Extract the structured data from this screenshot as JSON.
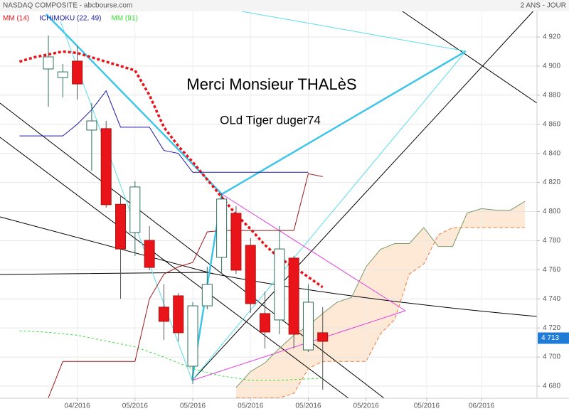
{
  "chart_data": {
    "type": "candlestick",
    "header": "NASDAQ COMPOSITE - abcbourse.com",
    "period": "2 ANS - JOUR",
    "annotations": [
      "Merci Monsieur THALèS",
      "OLd Tiger duger74"
    ],
    "xlim": [
      -3.35,
      33.84
    ],
    "ylim": [
      4671.7,
      4945.4
    ],
    "xticks": [
      {
        "value": 2,
        "label": "04/2016"
      },
      {
        "value": 6,
        "label": "05/2016"
      },
      {
        "value": 10,
        "label": "05/2016"
      },
      {
        "value": 14,
        "label": "05/2016"
      },
      {
        "value": 18,
        "label": "05/2016"
      },
      {
        "value": 22,
        "label": "05/2016"
      },
      {
        "value": 26.2,
        "label": "05/2016"
      },
      {
        "value": 30,
        "label": "06/2016"
      }
    ],
    "yticks": [
      {
        "value": 4680,
        "label": "4 680"
      },
      {
        "value": 4700,
        "label": "4 700"
      },
      {
        "value": 4720,
        "label": "4 720"
      },
      {
        "value": 4740,
        "label": "4 740"
      },
      {
        "value": 4760,
        "label": "4 760"
      },
      {
        "value": 4780,
        "label": "4 780"
      },
      {
        "value": 4800,
        "label": "4 800"
      },
      {
        "value": 4820,
        "label": "4 820"
      },
      {
        "value": 4840,
        "label": "4 840"
      },
      {
        "value": 4860,
        "label": "4 860"
      },
      {
        "value": 4880,
        "label": "4 880"
      },
      {
        "value": 4900,
        "label": "4 900"
      },
      {
        "value": 4920,
        "label": "4 920"
      }
    ],
    "grid": true,
    "candles": {
      "up_color": "#2f6f5e",
      "down_color": "#e8141a",
      "x": [
        0,
        1,
        2,
        3,
        4,
        5,
        6,
        7,
        8,
        9,
        10,
        11,
        12,
        13,
        14,
        15,
        16,
        17,
        18,
        19
      ],
      "open": [
        4898,
        4892.1,
        4903.4,
        4856,
        4857,
        4805,
        4785.6,
        4780.2,
        4734.3,
        4742.1,
        4693.7,
        4735.2,
        4768.5,
        4798.8,
        4776.8,
        4729.9,
        4725.5,
        4768,
        4704.9,
        4716.7
      ],
      "high": [
        4921,
        4901.4,
        4913.6,
        4874.5,
        4862.3,
        4811,
        4820.8,
        4790,
        4750,
        4744,
        4737.7,
        4762.1,
        4812.5,
        4803.7,
        4781.7,
        4745,
        4790,
        4769.5,
        4750,
        4734.3
      ],
      "low": [
        4872,
        4878.5,
        4877,
        4828,
        4802.7,
        4740,
        4769.5,
        4759.7,
        4711.8,
        4710.8,
        4681.5,
        4732.8,
        4757.2,
        4757.2,
        4730.4,
        4705.9,
        4715.7,
        4705.9,
        4703.5,
        4677.6
      ],
      "close": [
        4906.3,
        4896,
        4887.7,
        4862.3,
        4804.7,
        4774.3,
        4816.9,
        4761.6,
        4724.5,
        4716.7,
        4735.2,
        4749.9,
        4808.6,
        4759.7,
        4736.7,
        4717.2,
        4774.3,
        4715.7,
        4737.7,
        4710.8
      ]
    },
    "series": [
      {
        "name": "MM (14)",
        "color": "#e8141a",
        "style": "dotted",
        "width": 3.5,
        "x": [
          -2,
          -1,
          0,
          1,
          2,
          3,
          4,
          5,
          6,
          7,
          8,
          9,
          10,
          11,
          12,
          13,
          14,
          15,
          16,
          17,
          18,
          19
        ],
        "values": [
          4903,
          4906,
          4908,
          4910,
          4909,
          4906,
          4903,
          4900,
          4897,
          4880,
          4858,
          4845,
          4834,
          4822,
          4810,
          4798,
          4788,
          4777,
          4768,
          4762,
          4755,
          4748
        ]
      },
      {
        "name": "ICHIMOKU (22, 49)",
        "color": "#1a1aa8",
        "style": "solid",
        "width": 1,
        "x": [
          -2,
          -1,
          0,
          1,
          2,
          3,
          4,
          5,
          6,
          7,
          8,
          9,
          10,
          11,
          12,
          13,
          14,
          15,
          16,
          17,
          18
        ],
        "values": [
          4852,
          4852,
          4852,
          4852,
          4860,
          4870,
          4883,
          4858,
          4858,
          4858,
          4842,
          4840,
          4827,
          4827,
          4827,
          4827,
          4827,
          4827,
          4827,
          4827,
          4827
        ]
      },
      {
        "name": "MM (91)",
        "color": "#33dd33",
        "style": "dotted",
        "width": 1,
        "x": [
          -2,
          0,
          2,
          4,
          6,
          8,
          10,
          12,
          14,
          16,
          18,
          19
        ],
        "values": [
          4718,
          4717,
          4715,
          4711,
          4707,
          4700,
          4692,
          4687,
          4684,
          4684,
          4685,
          4685.5
        ]
      },
      {
        "color": "#a01818",
        "style": "solid",
        "width": 1,
        "x": [
          0,
          1,
          2,
          3,
          4,
          5,
          6,
          7,
          8,
          9,
          10,
          11,
          12,
          13,
          14,
          15,
          16,
          17,
          18,
          19
        ],
        "values": [
          4672,
          4697,
          4697,
          4697,
          4697,
          4697,
          4697,
          4740,
          4757,
          4762,
          4765,
          4786,
          4787,
          4787,
          4787,
          4787,
          4787,
          4787,
          4826,
          4824
        ]
      },
      {
        "color": "#7a9a6a",
        "style": "solid",
        "width": 1,
        "x": [
          13,
          14,
          15,
          16,
          17,
          18,
          19,
          20,
          21,
          22,
          23,
          24,
          25,
          26,
          27,
          28,
          29,
          30,
          31,
          32,
          33
        ],
        "values": [
          4679,
          4690,
          4696,
          4706,
          4715,
          4721.6,
          4730,
          4737.7,
          4741,
          4762,
          4774,
          4778,
          4778,
          4789,
          4776,
          4776,
          4799,
          4802,
          4801,
          4801,
          4807
        ]
      },
      {
        "color": "#f07a3a",
        "style": "dashed",
        "width": 1,
        "x": [
          13,
          14,
          15,
          16,
          17,
          18,
          19,
          20,
          21,
          22,
          23,
          24,
          25,
          26,
          27,
          28,
          29,
          30,
          31,
          32,
          33
        ],
        "values": [
          4672,
          4672,
          4672,
          4672,
          4675,
          4692,
          4697,
          4697,
          4697,
          4697,
          4716,
          4726,
          4757,
          4764,
          4784,
          4789,
          4789,
          4789,
          4789,
          4789,
          4789
        ]
      }
    ],
    "cloud_color": "#fde3cc",
    "last_price": {
      "value": 4713,
      "label": "4 713",
      "color": "#1e7bd6"
    }
  }
}
